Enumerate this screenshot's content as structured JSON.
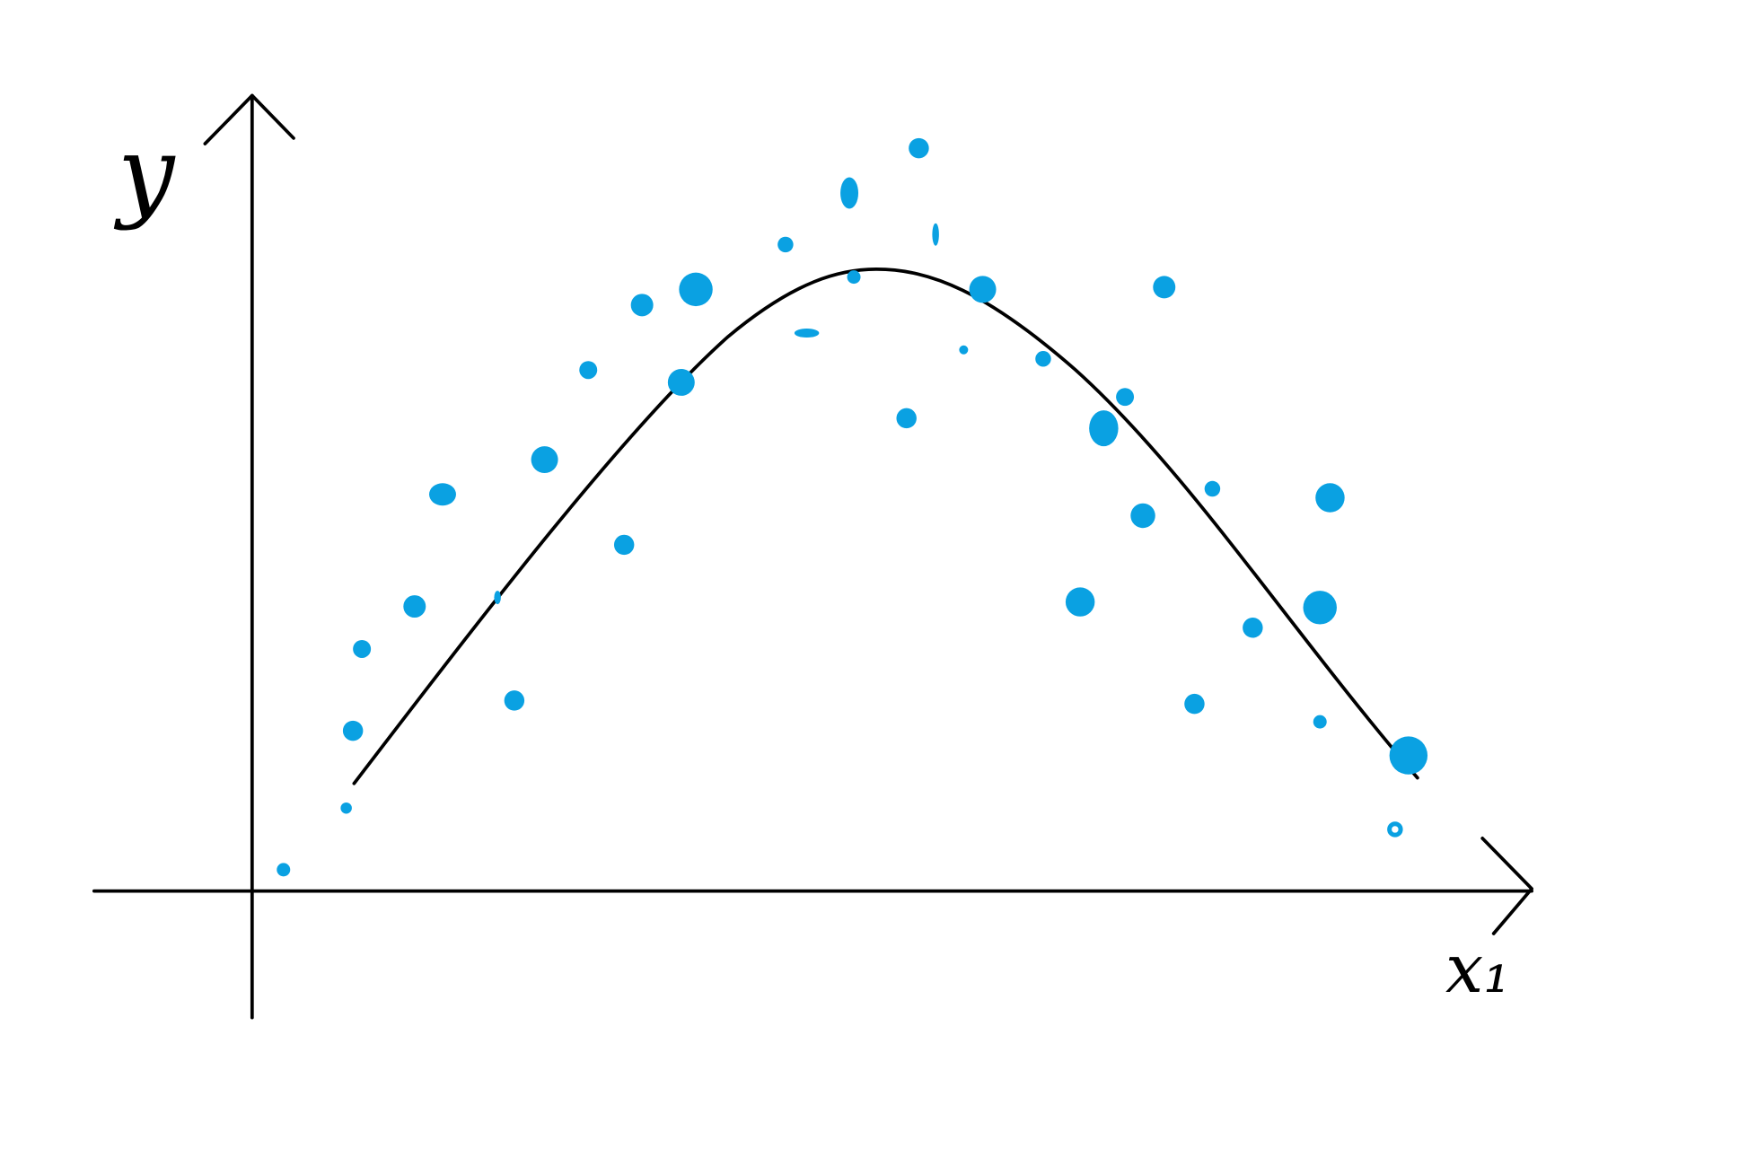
{
  "axes": {
    "y_label": "y",
    "x_label": "x₁"
  }
}
